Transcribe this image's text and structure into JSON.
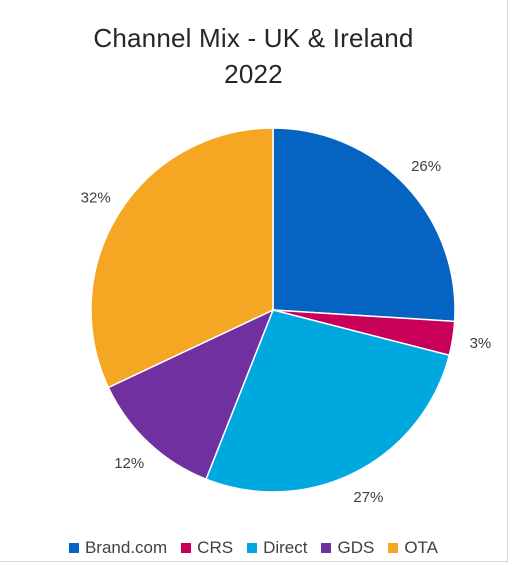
{
  "chart_data": {
    "type": "pie",
    "title_lines": [
      "Channel Mix - UK & Ireland",
      "2022"
    ],
    "categories": [
      "Brand.com",
      "CRS",
      "Direct",
      "GDS",
      "OTA"
    ],
    "values": [
      26,
      3,
      27,
      12,
      32
    ],
    "labels": [
      "26%",
      "3%",
      "27%",
      "12%",
      "32%"
    ],
    "colors": [
      "#0563c1",
      "#c8005a",
      "#00a8e0",
      "#7030a0",
      "#f5a623"
    ],
    "legend_position": "bottom",
    "start_angle_deg": 0,
    "direction": "clockwise"
  }
}
